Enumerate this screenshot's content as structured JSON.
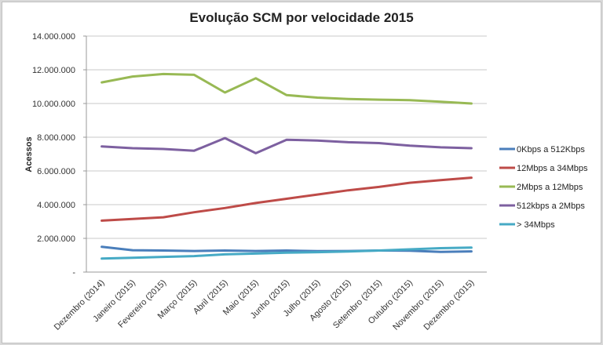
{
  "chart_data": {
    "type": "line",
    "title": "Evolução SCM por velocidade 2015",
    "xlabel": "",
    "ylabel": "Acessos",
    "ylim": [
      0,
      14000000
    ],
    "yticks": [
      0,
      2000000,
      4000000,
      6000000,
      8000000,
      10000000,
      12000000,
      14000000
    ],
    "ytick_labels": [
      "-",
      "2.000.000",
      "4.000.000",
      "6.000.000",
      "8.000.000",
      "10.000.000",
      "12.000.000",
      "14.000.000"
    ],
    "grid": true,
    "legend_position": "right",
    "categories": [
      "Dezembro (2014)",
      "Janeiro (2015)",
      "Fevereiro (2015)",
      "Março (2015)",
      "Abril (2015)",
      "Maio (2015)",
      "Junho (2015)",
      "Julho (2015)",
      "Agosto (2015)",
      "Setembro (2015)",
      "Outubro (2015)",
      "Novembro (2015)",
      "Dezembro (2015)"
    ],
    "series": [
      {
        "name": "0Kbps a 512Kbps",
        "color": "#4a7ebb",
        "values": [
          1500000,
          1300000,
          1280000,
          1250000,
          1280000,
          1250000,
          1280000,
          1240000,
          1250000,
          1280000,
          1270000,
          1200000,
          1230000
        ]
      },
      {
        "name": "12Mbps a 34Mbps",
        "color": "#be4b48",
        "values": [
          3050000,
          3150000,
          3250000,
          3550000,
          3800000,
          4100000,
          4350000,
          4600000,
          4850000,
          5050000,
          5300000,
          5450000,
          5600000
        ]
      },
      {
        "name": "2Mbps a 12Mbps",
        "color": "#98b954",
        "values": [
          11250000,
          11600000,
          11750000,
          11700000,
          10650000,
          11500000,
          10500000,
          10350000,
          10270000,
          10230000,
          10200000,
          10100000,
          10000000
        ]
      },
      {
        "name": "512kbps a 2Mbps",
        "color": "#7d60a0",
        "values": [
          7450000,
          7350000,
          7300000,
          7200000,
          7950000,
          7050000,
          7850000,
          7800000,
          7700000,
          7650000,
          7500000,
          7400000,
          7350000
        ]
      },
      {
        "name": "> 34Mbps",
        "color": "#46aac5",
        "values": [
          800000,
          850000,
          900000,
          950000,
          1050000,
          1100000,
          1150000,
          1180000,
          1220000,
          1280000,
          1350000,
          1420000,
          1450000
        ]
      }
    ]
  }
}
